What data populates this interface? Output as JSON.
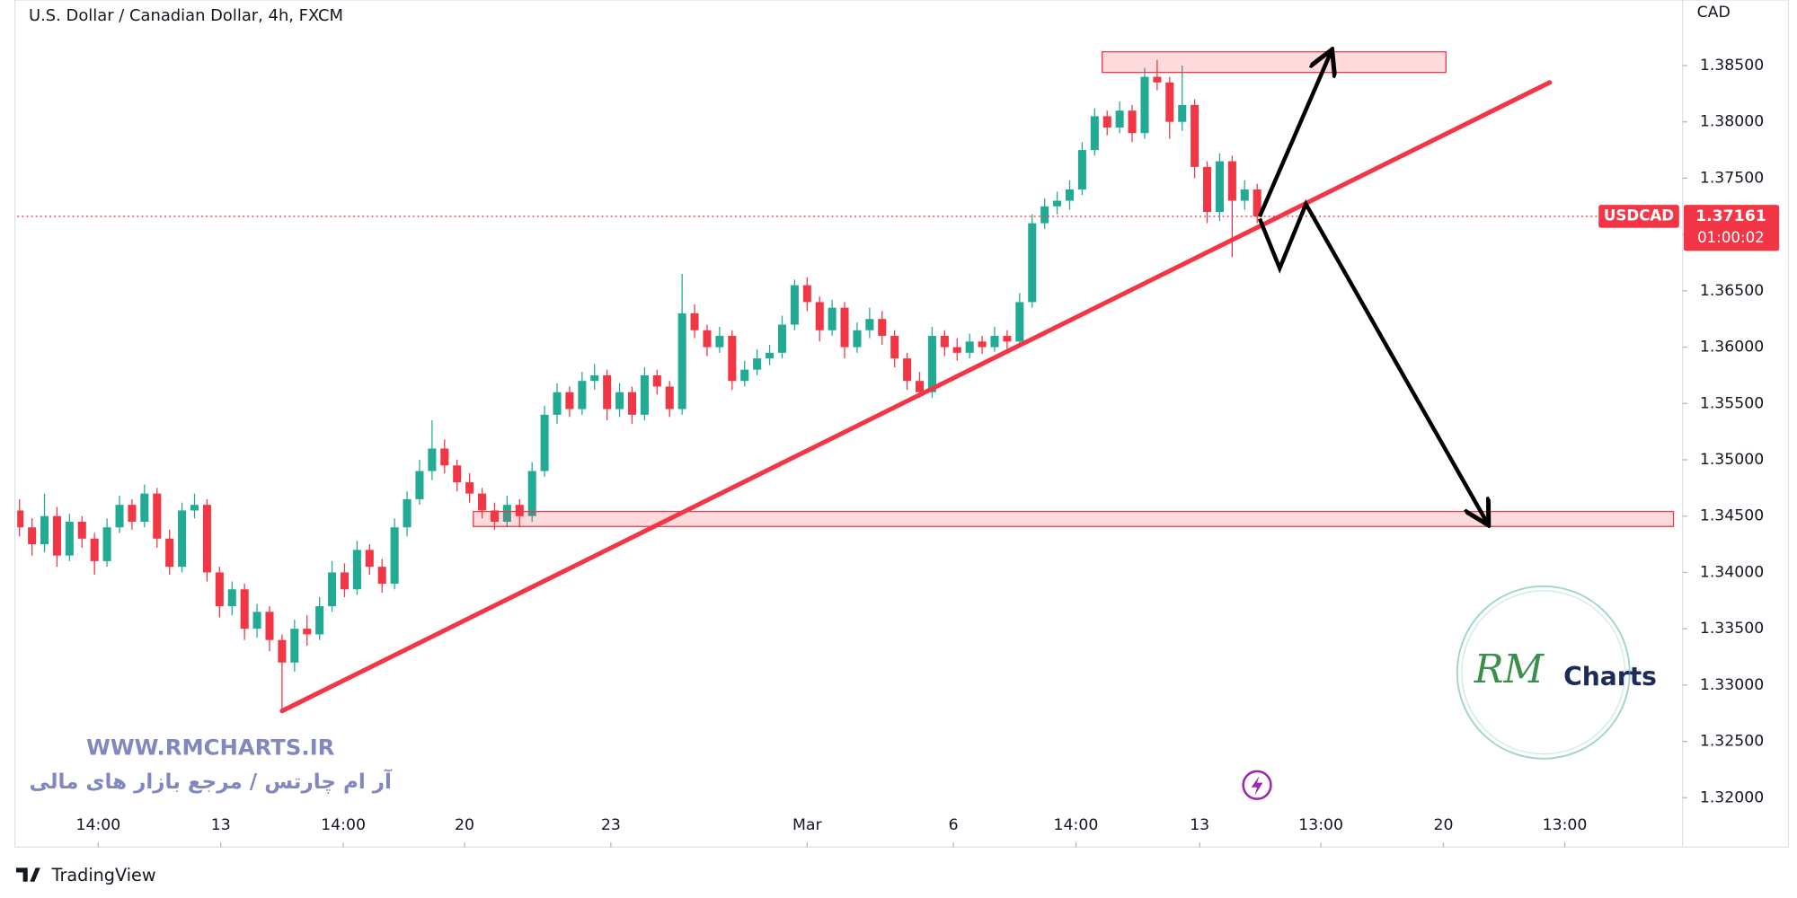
{
  "chart_data": {
    "type": "candlestick",
    "title": "U.S. Dollar / Canadian Dollar, 4h, FXCM",
    "y_axis_label": "CAD",
    "symbol": "USDCAD",
    "countdown": "01:00:02",
    "up_color": "#22ab94",
    "down_color": "#f23645",
    "grid": false,
    "open": [
      1.3455,
      1.344,
      1.3425,
      1.345,
      1.3415,
      1.3445,
      1.343,
      1.341,
      1.344,
      1.346,
      1.3445,
      1.347,
      1.343,
      1.3405,
      1.3455,
      1.346,
      1.34,
      1.337,
      1.3385,
      1.335,
      1.3365,
      1.334,
      1.332,
      1.335,
      1.3345,
      1.337,
      1.34,
      1.3385,
      1.342,
      1.3405,
      1.339,
      1.344,
      1.3465,
      1.349,
      1.351,
      1.3495,
      1.348,
      1.347,
      1.3455,
      1.3445,
      1.346,
      1.345,
      1.349,
      1.354,
      1.356,
      1.3545,
      1.357,
      1.3575,
      1.3545,
      1.356,
      1.354,
      1.3575,
      1.3565,
      1.3545,
      1.363,
      1.3615,
      1.36,
      1.361,
      1.357,
      1.358,
      1.359,
      1.3595,
      1.362,
      1.3655,
      1.364,
      1.3615,
      1.3635,
      1.36,
      1.3615,
      1.3625,
      1.361,
      1.359,
      1.357,
      1.356,
      1.361,
      1.36,
      1.3595,
      1.3605,
      1.36,
      1.361,
      1.3605,
      1.364,
      1.371,
      1.3725,
      1.373,
      1.374,
      1.3775,
      1.3805,
      1.3795,
      1.381,
      1.379,
      1.384,
      1.3835,
      1.38,
      1.3815,
      1.376,
      1.372,
      1.3765,
      1.373,
      1.374
    ],
    "high": [
      1.3465,
      1.3448,
      1.347,
      1.3458,
      1.3452,
      1.345,
      1.3435,
      1.3448,
      1.3468,
      1.3465,
      1.3478,
      1.3475,
      1.3438,
      1.3462,
      1.347,
      1.3465,
      1.3405,
      1.3392,
      1.339,
      1.3372,
      1.337,
      1.3345,
      1.3358,
      1.3362,
      1.3378,
      1.341,
      1.3408,
      1.3428,
      1.3425,
      1.3412,
      1.3448,
      1.3472,
      1.35,
      1.3535,
      1.3518,
      1.35,
      1.3488,
      1.3475,
      1.3462,
      1.3468,
      1.3465,
      1.3498,
      1.3548,
      1.3568,
      1.3565,
      1.3578,
      1.3585,
      1.358,
      1.3568,
      1.3565,
      1.3582,
      1.358,
      1.357,
      1.3665,
      1.3638,
      1.362,
      1.3618,
      1.3615,
      1.3588,
      1.3598,
      1.3602,
      1.3628,
      1.366,
      1.3662,
      1.3645,
      1.3642,
      1.364,
      1.3622,
      1.3635,
      1.3632,
      1.3615,
      1.3595,
      1.3578,
      1.3618,
      1.3615,
      1.3608,
      1.3612,
      1.361,
      1.3618,
      1.3615,
      1.3648,
      1.3718,
      1.3732,
      1.3738,
      1.3748,
      1.3782,
      1.3812,
      1.381,
      1.3818,
      1.3815,
      1.3848,
      1.3855,
      1.384,
      1.385,
      1.382,
      1.3765,
      1.3772,
      1.377,
      1.3748,
      1.3745
    ],
    "low": [
      1.3432,
      1.3415,
      1.3418,
      1.3405,
      1.341,
      1.3422,
      1.3398,
      1.3405,
      1.3435,
      1.3438,
      1.344,
      1.3422,
      1.3398,
      1.34,
      1.3448,
      1.3392,
      1.336,
      1.3362,
      1.334,
      1.3342,
      1.333,
      1.3277,
      1.3312,
      1.3335,
      1.334,
      1.3365,
      1.3378,
      1.338,
      1.3398,
      1.3382,
      1.3385,
      1.3432,
      1.346,
      1.3482,
      1.3488,
      1.3472,
      1.3462,
      1.3448,
      1.3438,
      1.344,
      1.344,
      1.3445,
      1.3485,
      1.3532,
      1.3538,
      1.354,
      1.3562,
      1.3535,
      1.3538,
      1.3532,
      1.3535,
      1.3558,
      1.3538,
      1.354,
      1.3608,
      1.3592,
      1.3595,
      1.3562,
      1.3565,
      1.3575,
      1.3584,
      1.359,
      1.3615,
      1.3632,
      1.3605,
      1.361,
      1.359,
      1.3595,
      1.3608,
      1.3602,
      1.3582,
      1.3562,
      1.3555,
      1.3555,
      1.3592,
      1.3588,
      1.359,
      1.3594,
      1.3596,
      1.3598,
      1.36,
      1.3635,
      1.3705,
      1.3718,
      1.3722,
      1.3735,
      1.377,
      1.3788,
      1.379,
      1.3782,
      1.3785,
      1.3828,
      1.3785,
      1.3792,
      1.375,
      1.371,
      1.3712,
      1.368,
      1.3722,
      1.371
    ],
    "close": [
      1.344,
      1.3425,
      1.345,
      1.3415,
      1.3445,
      1.343,
      1.341,
      1.344,
      1.346,
      1.3445,
      1.347,
      1.343,
      1.3405,
      1.3455,
      1.346,
      1.34,
      1.337,
      1.3385,
      1.335,
      1.3365,
      1.334,
      1.332,
      1.335,
      1.3345,
      1.337,
      1.34,
      1.3385,
      1.342,
      1.3405,
      1.339,
      1.344,
      1.3465,
      1.349,
      1.351,
      1.3495,
      1.348,
      1.347,
      1.3455,
      1.3445,
      1.346,
      1.345,
      1.349,
      1.354,
      1.356,
      1.3545,
      1.357,
      1.3575,
      1.3545,
      1.356,
      1.354,
      1.3575,
      1.3565,
      1.3545,
      1.363,
      1.3615,
      1.36,
      1.361,
      1.357,
      1.358,
      1.359,
      1.3595,
      1.362,
      1.3655,
      1.364,
      1.3615,
      1.3635,
      1.36,
      1.3615,
      1.3625,
      1.361,
      1.359,
      1.357,
      1.356,
      1.361,
      1.36,
      1.3595,
      1.3605,
      1.36,
      1.361,
      1.3605,
      1.364,
      1.371,
      1.3725,
      1.373,
      1.374,
      1.3775,
      1.3805,
      1.3795,
      1.381,
      1.379,
      1.384,
      1.3835,
      1.38,
      1.3815,
      1.376,
      1.372,
      1.3765,
      1.373,
      1.374,
      1.37161
    ],
    "xlim": [
      -0.18,
      132.75
    ],
    "xticks": [
      {
        "value": 6.3,
        "label": "14:00"
      },
      {
        "value": 16.1,
        "label": "13"
      },
      {
        "value": 25.9,
        "label": "14:00"
      },
      {
        "value": 35.6,
        "label": "20"
      },
      {
        "value": 47.3,
        "label": "23"
      },
      {
        "value": 63.0,
        "label": "Mar"
      },
      {
        "value": 74.7,
        "label": "6"
      },
      {
        "value": 84.5,
        "label": "14:00"
      },
      {
        "value": 94.4,
        "label": "13"
      },
      {
        "value": 104.1,
        "label": "13:00"
      },
      {
        "value": 113.9,
        "label": "20"
      },
      {
        "value": 123.6,
        "label": "13:00"
      }
    ],
    "ylim": [
      1.31561,
      1.39082
    ],
    "yticks": [
      {
        "value": 1.32,
        "label": "1.32000"
      },
      {
        "value": 1.325,
        "label": "1.32500"
      },
      {
        "value": 1.33,
        "label": "1.33000"
      },
      {
        "value": 1.335,
        "label": "1.33500"
      },
      {
        "value": 1.34,
        "label": "1.34000"
      },
      {
        "value": 1.345,
        "label": "1.34500"
      },
      {
        "value": 1.35,
        "label": "1.35000"
      },
      {
        "value": 1.355,
        "label": "1.35500"
      },
      {
        "value": 1.36,
        "label": "1.36000"
      },
      {
        "value": 1.365,
        "label": "1.36500"
      },
      {
        "value": 1.37,
        "label": "1.37000"
      },
      {
        "value": 1.375,
        "label": "1.37500"
      },
      {
        "value": 1.38,
        "label": "1.38000"
      },
      {
        "value": 1.385,
        "label": "1.38500"
      }
    ],
    "trendline": {
      "color": "#f23645",
      "points": [
        [
          21,
          1.3277
        ],
        [
          122.4,
          1.3835
        ]
      ]
    },
    "zones": [
      {
        "x": [
          86.6,
          114.1
        ],
        "y": [
          1.38439,
          1.38622
        ]
      },
      {
        "x": [
          36.3,
          132.3
        ],
        "y": [
          1.34408,
          1.34541
        ]
      }
    ],
    "arrows": [
      [
        [
          99.2,
          1.3716
        ],
        [
          104.9,
          1.3862
        ]
      ],
      [
        [
          99.2,
          1.3714
        ],
        [
          100.8,
          1.367
        ],
        [
          102.9,
          1.3727
        ],
        [
          117.4,
          1.3444
        ]
      ]
    ]
  },
  "branding": {
    "website": "WWW.RMCHARTS.IR",
    "tagline": "آر ام چارتس / مرجع بازار های مالی",
    "logo_mark": "RM",
    "logo_text": "Charts",
    "platform": "TradingView"
  }
}
